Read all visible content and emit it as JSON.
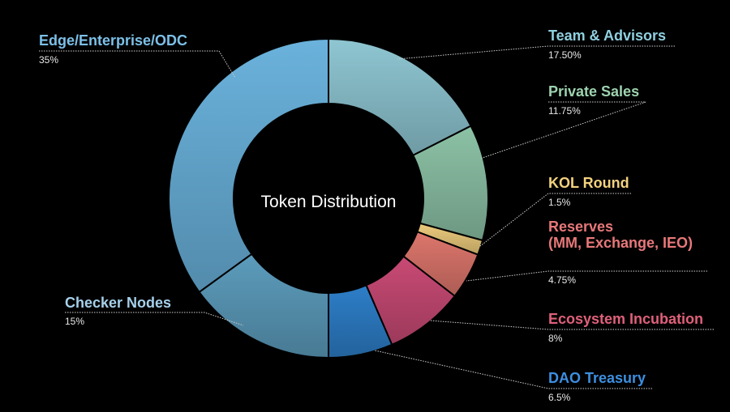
{
  "chart_data": {
    "type": "pie",
    "variant": "donut",
    "title": "Token Distribution",
    "unit": "%",
    "start": "top",
    "direction": "clockwise",
    "slices": [
      {
        "label": "Team & Advisors",
        "value": 17.5,
        "display": "17.50%",
        "color": "#8ec6d2",
        "label_color": "#8fd0e0"
      },
      {
        "label": "Private Sales",
        "value": 11.75,
        "display": "11.75%",
        "color": "#8cc2a6",
        "label_color": "#9ed4b0"
      },
      {
        "label": "KOL Round",
        "value": 1.5,
        "display": "1.5%",
        "color": "#eccb7c",
        "label_color": "#f3d27f"
      },
      {
        "label": "Reserves\n(MM, Exchange, IEO)",
        "value": 4.75,
        "display": "4.75%",
        "color": "#dd766c",
        "label_color": "#e8787a"
      },
      {
        "label": "Ecosystem Incubation",
        "value": 8,
        "display": "8%",
        "color": "#c84a74",
        "label_color": "#e0607a"
      },
      {
        "label": "DAO Treasury",
        "value": 6.5,
        "display": "6.5%",
        "color": "#2d7ec8",
        "label_color": "#3d8fe0"
      },
      {
        "label": "Checker Nodes",
        "value": 15,
        "display": "15%",
        "color": "#5c9cbc",
        "label_color": "#a6d0ea"
      },
      {
        "label": "Edge/Enterprise/ODC",
        "value": 35,
        "display": "35%",
        "color": "#6ab2dc",
        "label_color": "#7cc0e8"
      }
    ]
  }
}
